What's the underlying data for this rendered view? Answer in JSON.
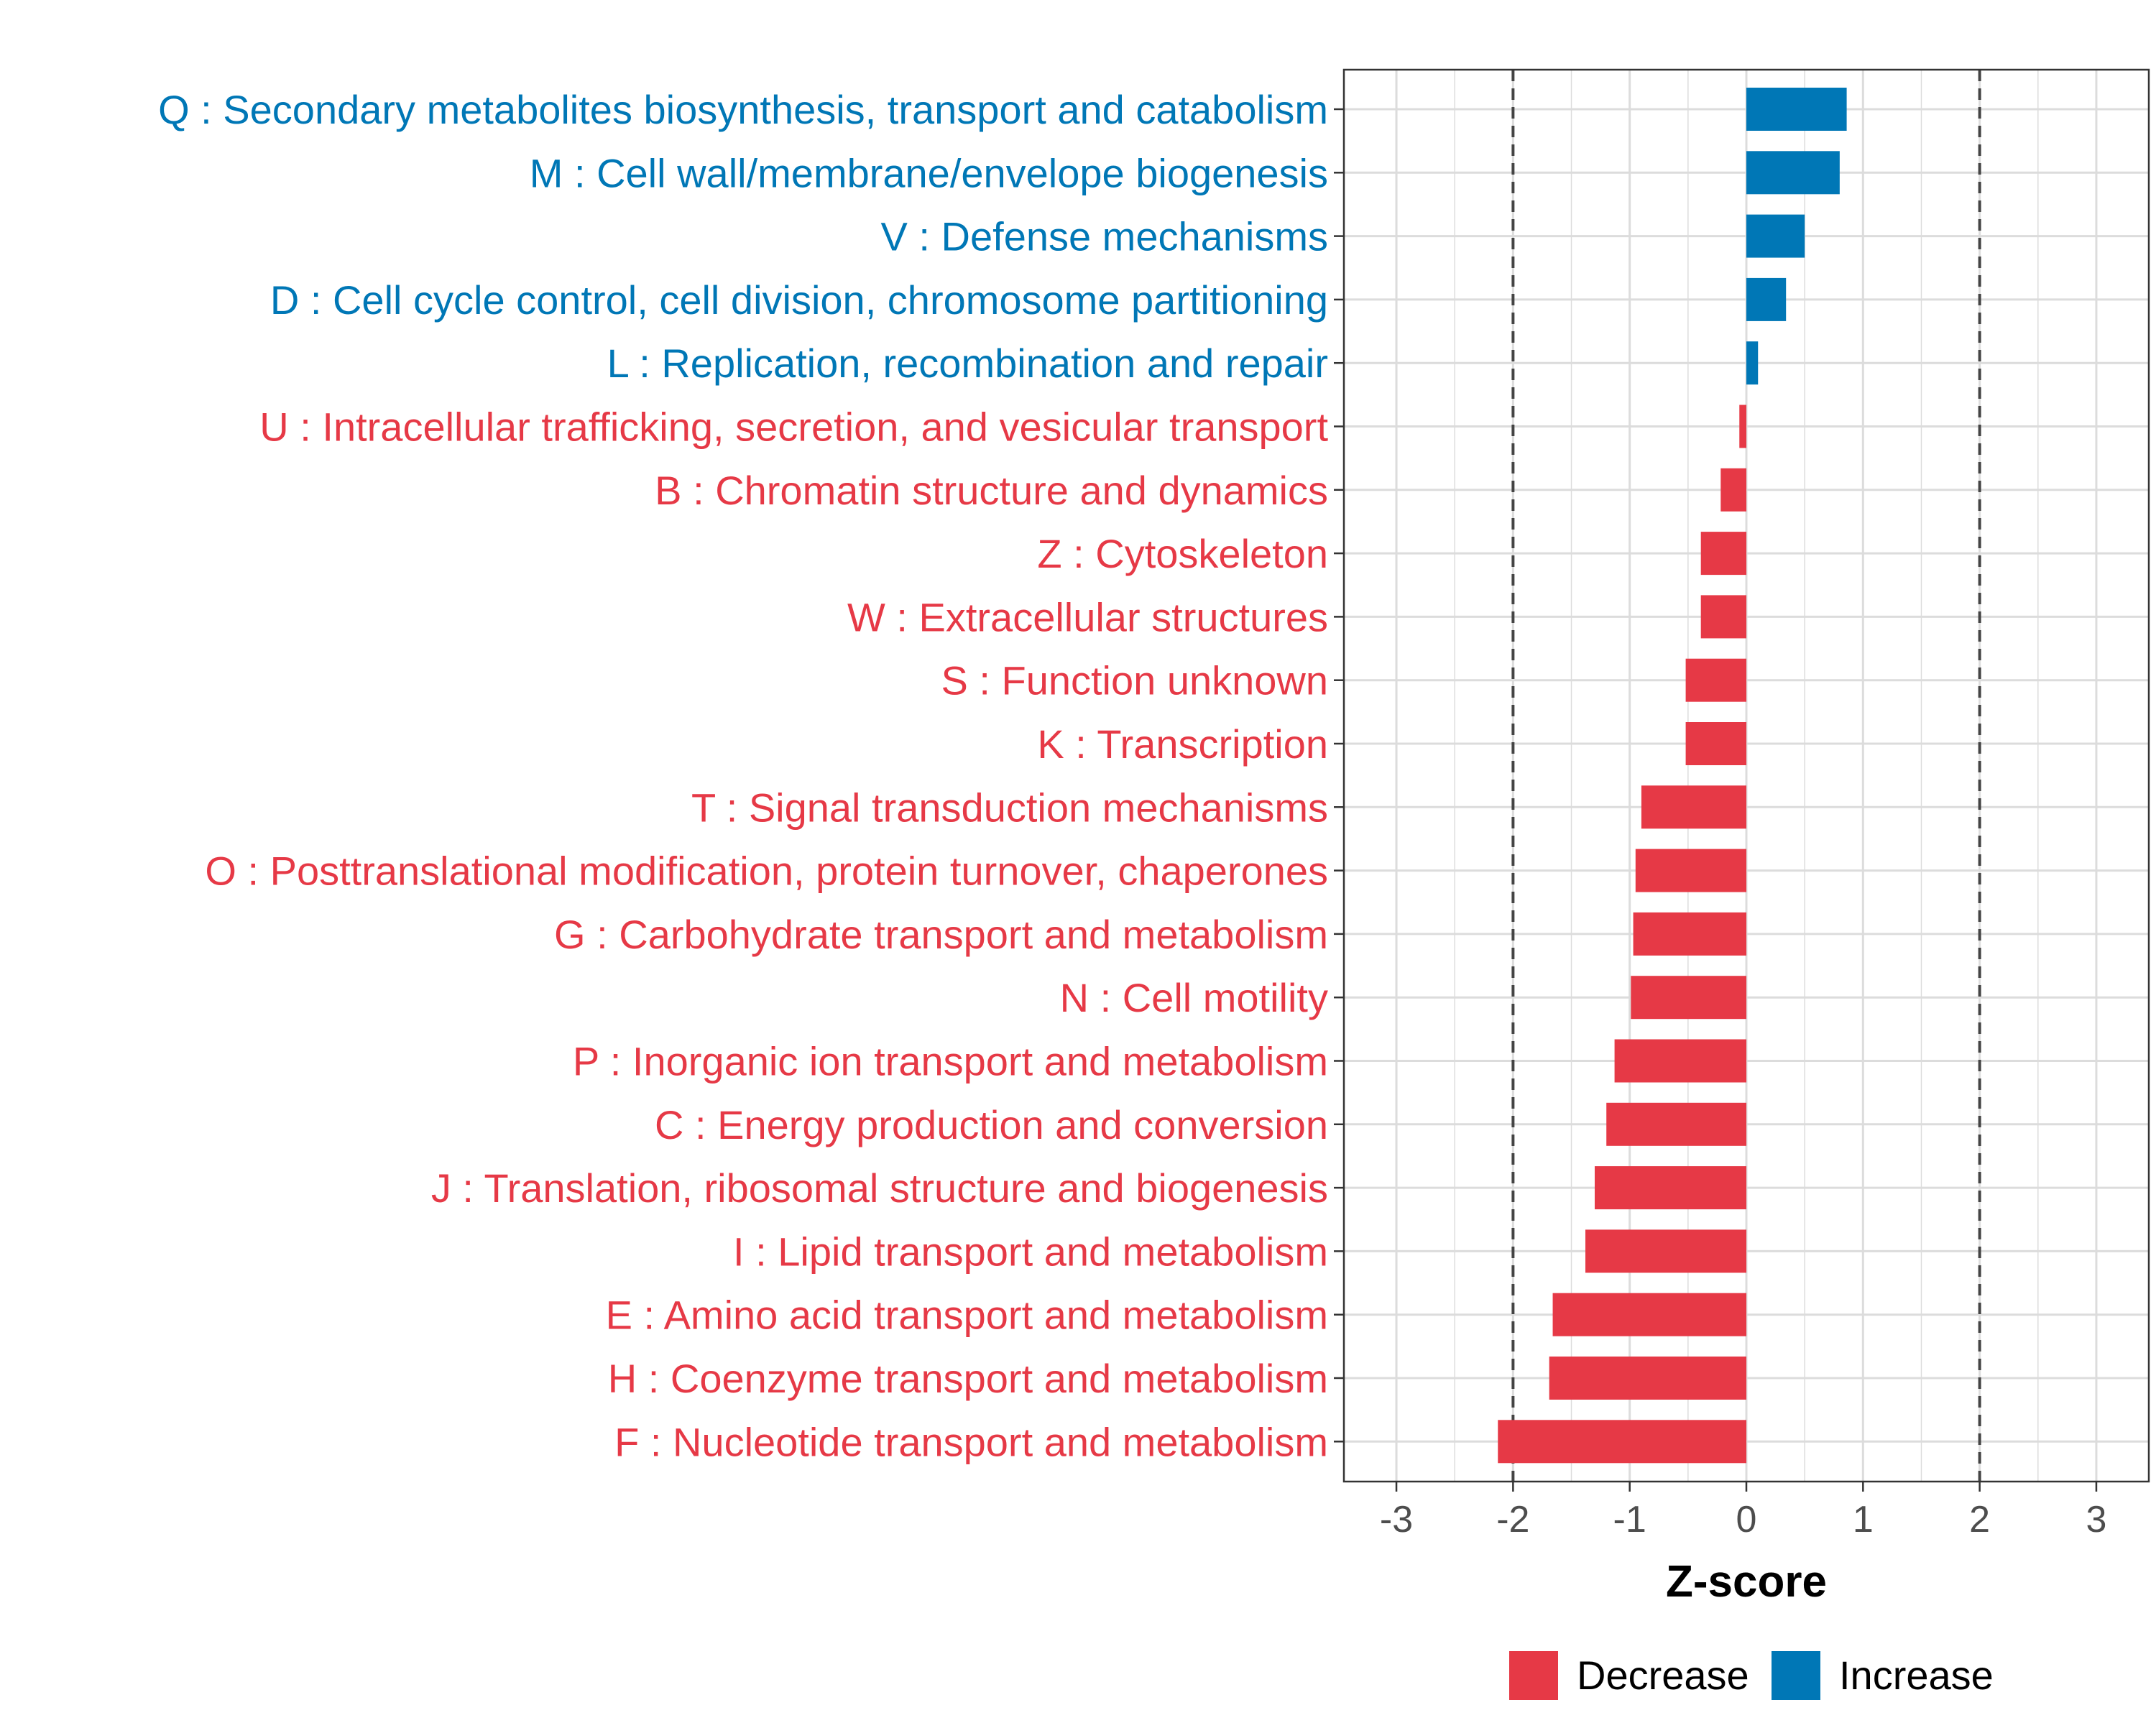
{
  "chart_data": {
    "type": "bar",
    "orientation": "horizontal",
    "title": "",
    "xlabel": "Z-score",
    "ylabel": "",
    "xlim": [
      -3.45,
      3.45
    ],
    "xticks": [
      "-3",
      "-2",
      "-1",
      "0",
      "1",
      "2",
      "3"
    ],
    "xtick_values": [
      -3,
      -2,
      -1,
      0,
      1,
      2,
      3
    ],
    "reference_lines": [
      -2,
      2
    ],
    "grid": true,
    "legend": {
      "position": "bottom",
      "entries": [
        {
          "name": "Decrease",
          "color": "#E63946"
        },
        {
          "name": "Increase",
          "color": "#0077B6"
        }
      ]
    },
    "categories": [
      {
        "label": "Q : Secondary metabolites biosynthesis, transport and catabolism",
        "value": 0.86,
        "group": "Increase"
      },
      {
        "label": "M : Cell wall/membrane/envelope biogenesis",
        "value": 0.8,
        "group": "Increase"
      },
      {
        "label": "V : Defense mechanisms",
        "value": 0.5,
        "group": "Increase"
      },
      {
        "label": "D : Cell cycle control, cell division, chromosome partitioning",
        "value": 0.34,
        "group": "Increase"
      },
      {
        "label": "L : Replication, recombination and repair",
        "value": 0.1,
        "group": "Increase"
      },
      {
        "label": "U : Intracellular trafficking, secretion, and vesicular transport",
        "value": -0.06,
        "group": "Decrease"
      },
      {
        "label": "B : Chromatin structure and dynamics",
        "value": -0.22,
        "group": "Decrease"
      },
      {
        "label": "Z : Cytoskeleton",
        "value": -0.39,
        "group": "Decrease"
      },
      {
        "label": "W : Extracellular structures",
        "value": -0.39,
        "group": "Decrease"
      },
      {
        "label": "S : Function unknown",
        "value": -0.52,
        "group": "Decrease"
      },
      {
        "label": "K : Transcription",
        "value": -0.52,
        "group": "Decrease"
      },
      {
        "label": "T : Signal transduction mechanisms",
        "value": -0.9,
        "group": "Decrease"
      },
      {
        "label": "O : Posttranslational modification, protein turnover, chaperones",
        "value": -0.95,
        "group": "Decrease"
      },
      {
        "label": "G : Carbohydrate transport and metabolism",
        "value": -0.97,
        "group": "Decrease"
      },
      {
        "label": "N : Cell motility",
        "value": -0.99,
        "group": "Decrease"
      },
      {
        "label": "P : Inorganic ion transport and metabolism",
        "value": -1.13,
        "group": "Decrease"
      },
      {
        "label": "C : Energy production and conversion",
        "value": -1.2,
        "group": "Decrease"
      },
      {
        "label": "J : Translation, ribosomal structure and biogenesis",
        "value": -1.3,
        "group": "Decrease"
      },
      {
        "label": "I : Lipid transport and metabolism",
        "value": -1.38,
        "group": "Decrease"
      },
      {
        "label": "E : Amino acid transport and metabolism",
        "value": -1.66,
        "group": "Decrease"
      },
      {
        "label": "H : Coenzyme transport and metabolism",
        "value": -1.69,
        "group": "Decrease"
      },
      {
        "label": "F : Nucleotide transport and metabolism",
        "value": -2.13,
        "group": "Decrease"
      }
    ]
  }
}
